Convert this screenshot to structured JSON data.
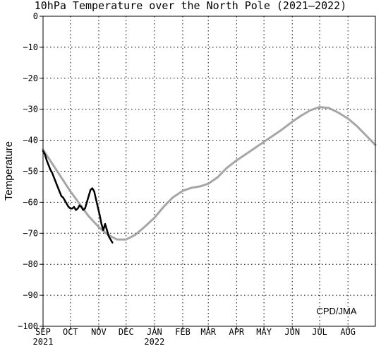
{
  "chart_data": {
    "type": "line",
    "title": "10hPa Temperature over the North Pole (2021–2022)",
    "ylabel": "Temperature",
    "xlabel": "",
    "ylim": [
      -100,
      0
    ],
    "xlim": [
      "2021-09-01",
      "2022-08-31"
    ],
    "yticks": [
      0,
      -10,
      -20,
      -30,
      -40,
      -50,
      -60,
      -70,
      -80,
      -90,
      -100
    ],
    "xticks": [
      {
        "label": "SEP",
        "sublabel": "2021",
        "date": "2021-09-01"
      },
      {
        "label": "OCT",
        "sublabel": "",
        "date": "2021-10-01"
      },
      {
        "label": "NOV",
        "sublabel": "",
        "date": "2021-11-01"
      },
      {
        "label": "DEC",
        "sublabel": "",
        "date": "2021-12-01"
      },
      {
        "label": "JAN",
        "sublabel": "2022",
        "date": "2022-01-01"
      },
      {
        "label": "FEB",
        "sublabel": "",
        "date": "2022-02-01"
      },
      {
        "label": "MAR",
        "sublabel": "",
        "date": "2022-03-01"
      },
      {
        "label": "APR",
        "sublabel": "",
        "date": "2022-04-01"
      },
      {
        "label": "MAY",
        "sublabel": "",
        "date": "2022-05-01"
      },
      {
        "label": "JUN",
        "sublabel": "",
        "date": "2022-06-01"
      },
      {
        "label": "JUL",
        "sublabel": "",
        "date": "2022-07-01"
      },
      {
        "label": "AUG",
        "sublabel": "",
        "date": "2022-08-01"
      }
    ],
    "grid": true,
    "annotation": "CPD/JMA",
    "colors": {
      "climatology": "#a6a6a6",
      "observed": "#000000"
    },
    "series": [
      {
        "color": "#a6a6a6",
        "x": [
          "2021-09-01",
          "2021-09-11",
          "2021-09-21",
          "2021-10-01",
          "2021-10-11",
          "2021-10-21",
          "2021-11-01",
          "2021-11-11",
          "2021-11-21",
          "2021-12-01",
          "2021-12-11",
          "2021-12-21",
          "2022-01-01",
          "2022-01-11",
          "2022-01-21",
          "2022-02-01",
          "2022-02-11",
          "2022-02-21",
          "2022-03-01",
          "2022-03-11",
          "2022-03-21",
          "2022-04-01",
          "2022-04-11",
          "2022-04-21",
          "2022-05-01",
          "2022-05-11",
          "2022-05-21",
          "2022-06-01",
          "2022-06-11",
          "2022-06-21",
          "2022-07-01",
          "2022-07-11",
          "2022-07-21",
          "2022-08-01",
          "2022-08-11",
          "2022-08-21",
          "2022-08-31"
        ],
        "values": [
          -43,
          -47.5,
          -52,
          -56.5,
          -60.5,
          -64.5,
          -68,
          -70.5,
          -72,
          -72,
          -70.5,
          -68,
          -65,
          -61.5,
          -58.5,
          -56.3,
          -55.3,
          -54.8,
          -54,
          -52,
          -49,
          -46.5,
          -44.5,
          -42.5,
          -40.5,
          -38.5,
          -36.5,
          -34,
          -32,
          -30.3,
          -29.3,
          -29.6,
          -31,
          -33,
          -35.5,
          -38.5,
          -41.5
        ]
      },
      {
        "color": "#000000",
        "x": [
          "2021-09-01",
          "2021-09-03",
          "2021-09-05",
          "2021-09-07",
          "2021-09-09",
          "2021-09-11",
          "2021-09-13",
          "2021-09-15",
          "2021-09-17",
          "2021-09-19",
          "2021-09-21",
          "2021-09-23",
          "2021-09-25",
          "2021-09-27",
          "2021-09-29",
          "2021-10-01",
          "2021-10-03",
          "2021-10-05",
          "2021-10-07",
          "2021-10-09",
          "2021-10-11",
          "2021-10-13",
          "2021-10-15",
          "2021-10-17",
          "2021-10-19",
          "2021-10-21",
          "2021-10-23",
          "2021-10-25",
          "2021-10-27",
          "2021-10-29",
          "2021-10-31",
          "2021-11-02",
          "2021-11-04",
          "2021-11-06",
          "2021-11-08",
          "2021-11-10",
          "2021-11-12",
          "2021-11-14",
          "2021-11-16"
        ],
        "values": [
          -43.5,
          -44.5,
          -46.5,
          -48,
          -49.5,
          -50.5,
          -52,
          -53.5,
          -55,
          -56.5,
          -58,
          -58.5,
          -59.5,
          -60.5,
          -61.5,
          -62,
          -62,
          -61.5,
          -62.5,
          -62,
          -61,
          -61.5,
          -62.5,
          -62,
          -60,
          -58,
          -56,
          -55.5,
          -56.5,
          -59,
          -61.5,
          -64,
          -67,
          -69,
          -67,
          -69,
          -71,
          -72,
          -73
        ]
      }
    ]
  }
}
